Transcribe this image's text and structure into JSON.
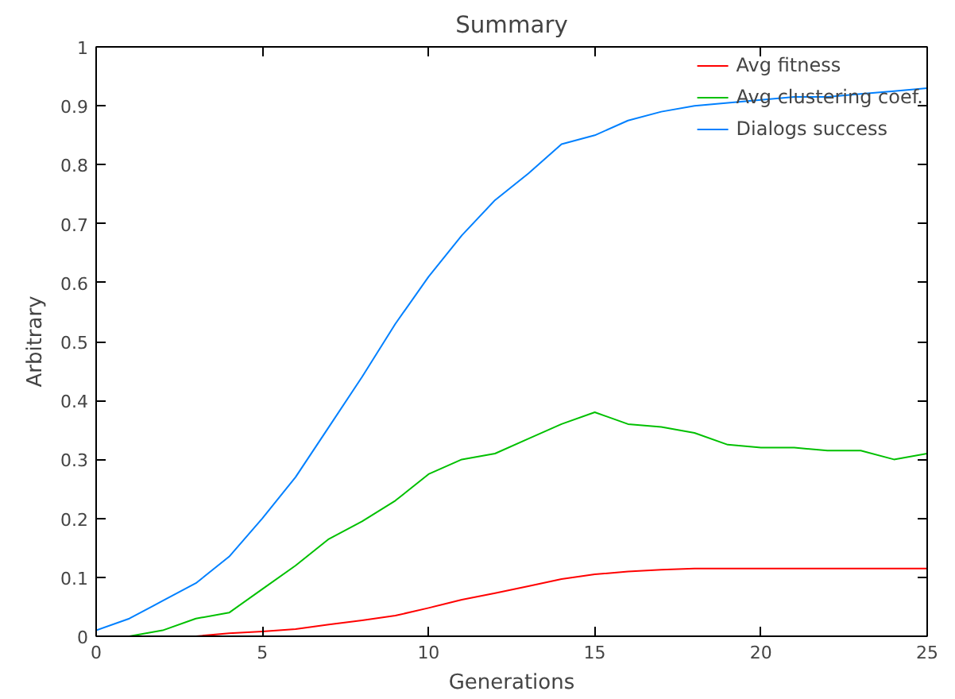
{
  "chart_data": {
    "type": "line",
    "title": "Summary",
    "xlabel": "Generations",
    "ylabel": "Arbitrary",
    "x": [
      0,
      1,
      2,
      3,
      4,
      5,
      6,
      7,
      8,
      9,
      10,
      11,
      12,
      13,
      14,
      15,
      16,
      17,
      18,
      19,
      20,
      21,
      22,
      23,
      24,
      25
    ],
    "series": [
      {
        "name": "Avg fitness",
        "color": "#ff0000",
        "values": [
          null,
          null,
          0,
          0,
          0.005,
          0.008,
          0.012,
          0.02,
          0.027,
          0.035,
          0.048,
          0.062,
          0.073,
          0.085,
          0.097,
          0.105,
          0.11,
          0.113,
          0.115,
          0.115,
          0.115,
          0.115,
          0.115,
          0.115,
          0.115,
          0.115
        ]
      },
      {
        "name": "Avg clustering coef.",
        "color": "#00c000",
        "values": [
          0,
          0,
          0.01,
          0.03,
          0.04,
          0.08,
          0.12,
          0.165,
          0.195,
          0.23,
          0.275,
          0.3,
          0.31,
          0.335,
          0.36,
          0.38,
          0.36,
          0.355,
          0.345,
          0.325,
          0.32,
          0.32,
          0.315,
          0.315,
          0.3,
          0.31
        ]
      },
      {
        "name": "Dialogs success",
        "color": "#0080ff",
        "values": [
          0.01,
          0.03,
          0.06,
          0.09,
          0.135,
          0.2,
          0.27,
          0.355,
          0.44,
          0.53,
          0.61,
          0.68,
          0.74,
          0.785,
          0.835,
          0.85,
          0.875,
          0.89,
          0.9,
          0.905,
          0.91,
          0.915,
          0.915,
          0.92,
          0.925,
          0.93
        ]
      }
    ],
    "xlim": [
      0,
      25
    ],
    "xticks": [
      0,
      5,
      10,
      15,
      20,
      25
    ],
    "ylim": [
      0,
      1
    ],
    "yticks": [
      0,
      0.1,
      0.2,
      0.3,
      0.4,
      0.5,
      0.6,
      0.7,
      0.8,
      0.9,
      1
    ],
    "grid": false,
    "legend": "top right"
  }
}
